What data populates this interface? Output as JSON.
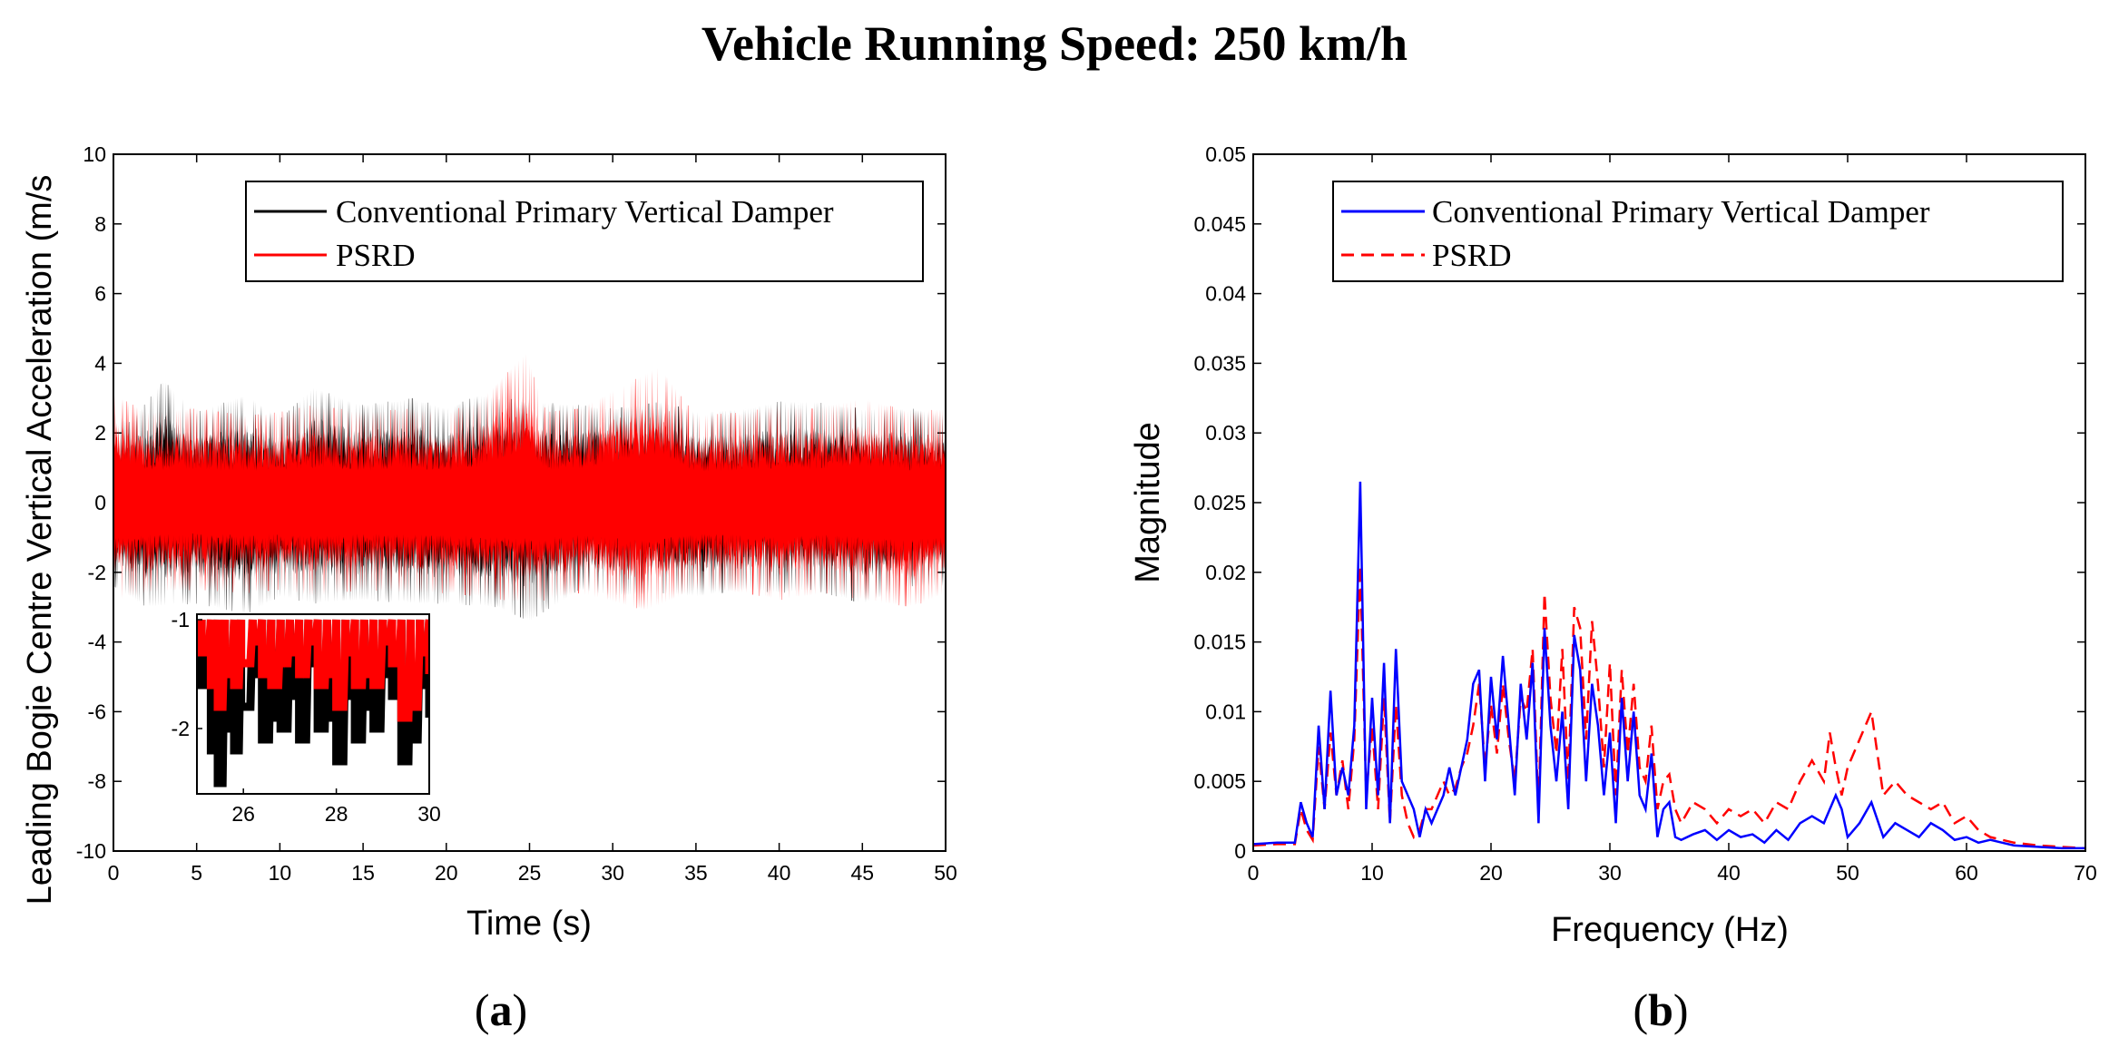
{
  "figure": {
    "title": "Vehicle Running Speed: 250 km/h"
  },
  "colors": {
    "conventional_a": "#000000",
    "psrd_a": "#ff0000",
    "conventional_b": "#0000ff",
    "psrd_b": "#ff0000"
  },
  "chart_data": [
    {
      "panel": "(a)",
      "type": "line",
      "title": "",
      "xlabel": "Time (s)",
      "ylabel": "Leading Bogie Centre Vertical Acceleration (m/s",
      "xlim": [
        0,
        50
      ],
      "ylim": [
        -10,
        10
      ],
      "xticks": [
        "0",
        "5",
        "10",
        "15",
        "20",
        "25",
        "30",
        "35",
        "40",
        "45",
        "50"
      ],
      "yticks": [
        "10",
        "8",
        "6",
        "4",
        "2",
        "0",
        "-2",
        "-4",
        "-6",
        "-8",
        "-10"
      ],
      "legend_position": "top-right",
      "series": [
        {
          "name": "Conventional Primary Vertical Damper",
          "style": "solid",
          "envelope_upper": [
            [
              0,
              2.6
            ],
            [
              1,
              2.3
            ],
            [
              3,
              3.5
            ],
            [
              5,
              2.6
            ],
            [
              8,
              3.1
            ],
            [
              10,
              2.4
            ],
            [
              12,
              3.3
            ],
            [
              15,
              2.8
            ],
            [
              18,
              3.0
            ],
            [
              20,
              2.7
            ],
            [
              22,
              3.1
            ],
            [
              25,
              2.9
            ],
            [
              28,
              2.8
            ],
            [
              30,
              2.7
            ],
            [
              33,
              2.9
            ],
            [
              35,
              2.6
            ],
            [
              38,
              2.7
            ],
            [
              40,
              2.9
            ],
            [
              42,
              2.9
            ],
            [
              45,
              2.7
            ],
            [
              48,
              2.7
            ],
            [
              50,
              2.5
            ]
          ],
          "envelope_lower": [
            [
              0,
              -2.4
            ],
            [
              2,
              -3.0
            ],
            [
              5,
              -2.9
            ],
            [
              8,
              -3.2
            ],
            [
              10,
              -2.7
            ],
            [
              12,
              -2.9
            ],
            [
              15,
              -2.8
            ],
            [
              18,
              -2.9
            ],
            [
              20,
              -2.9
            ],
            [
              23,
              -3.0
            ],
            [
              25,
              -3.4
            ],
            [
              28,
              -2.5
            ],
            [
              30,
              -2.7
            ],
            [
              33,
              -2.6
            ],
            [
              35,
              -2.7
            ],
            [
              38,
              -2.5
            ],
            [
              40,
              -2.6
            ],
            [
              42,
              -2.5
            ],
            [
              45,
              -2.9
            ],
            [
              48,
              -2.4
            ],
            [
              50,
              -2.4
            ]
          ]
        },
        {
          "name": "PSRD",
          "style": "solid",
          "envelope_upper": [
            [
              0,
              3.1
            ],
            [
              2,
              2.6
            ],
            [
              5,
              2.7
            ],
            [
              8,
              2.5
            ],
            [
              10,
              2.6
            ],
            [
              12,
              2.8
            ],
            [
              15,
              2.6
            ],
            [
              18,
              2.7
            ],
            [
              20,
              2.6
            ],
            [
              22,
              2.9
            ],
            [
              24.8,
              4.3
            ],
            [
              26,
              2.6
            ],
            [
              28,
              2.7
            ],
            [
              32.8,
              3.9
            ],
            [
              35,
              2.5
            ],
            [
              38,
              2.6
            ],
            [
              40,
              2.8
            ],
            [
              42,
              2.7
            ],
            [
              45,
              3.0
            ],
            [
              48,
              2.6
            ],
            [
              50,
              2.7
            ]
          ],
          "envelope_lower": [
            [
              0,
              -2.8
            ],
            [
              2,
              -2.6
            ],
            [
              5,
              -2.5
            ],
            [
              8,
              -2.6
            ],
            [
              10,
              -2.5
            ],
            [
              12,
              -2.7
            ],
            [
              15,
              -2.5
            ],
            [
              18,
              -2.6
            ],
            [
              20,
              -2.6
            ],
            [
              22,
              -2.7
            ],
            [
              25,
              -2.9
            ],
            [
              28,
              -2.6
            ],
            [
              32,
              -3.1
            ],
            [
              35,
              -2.5
            ],
            [
              38,
              -2.6
            ],
            [
              40,
              -2.8
            ],
            [
              43,
              -2.6
            ],
            [
              45,
              -2.8
            ],
            [
              48,
              -3.0
            ],
            [
              50,
              -2.6
            ]
          ]
        }
      ],
      "inset": {
        "xlim": [
          25,
          30
        ],
        "ylim": [
          -2.6,
          -0.95
        ],
        "xticks": [
          "26",
          "28",
          "30"
        ],
        "yticks": [
          "-1",
          "-2"
        ],
        "series": [
          {
            "name": "Conventional Primary Vertical Damper",
            "x": [
              25.1,
              25.3,
              25.45,
              25.6,
              25.8,
              25.95,
              26.2,
              26.4,
              26.6,
              26.8,
              27.0,
              27.2,
              27.4,
              27.6,
              27.8,
              28.0,
              28.2,
              28.4,
              28.6,
              28.8,
              29.0,
              29.2,
              29.4,
              29.6,
              29.8,
              30.0
            ],
            "y": [
              -1.6,
              -2.2,
              -2.5,
              -2.0,
              -2.2,
              -1.8,
              -1.5,
              -2.1,
              -1.9,
              -2.0,
              -1.7,
              -2.1,
              -1.4,
              -2.0,
              -1.9,
              -2.3,
              -1.7,
              -2.1,
              -1.8,
              -2.0,
              -1.5,
              -1.7,
              -2.3,
              -2.1,
              -1.6,
              -1.9
            ]
          },
          {
            "name": "PSRD",
            "x": [
              25.1,
              25.3,
              25.45,
              25.6,
              25.8,
              25.95,
              26.2,
              26.4,
              26.6,
              26.8,
              27.0,
              27.2,
              27.4,
              27.6,
              27.8,
              28.0,
              28.2,
              28.4,
              28.6,
              28.8,
              29.0,
              29.2,
              29.4,
              29.6,
              29.8,
              30.0
            ],
            "y": [
              -1.3,
              -1.6,
              -1.8,
              -1.5,
              -1.6,
              -1.4,
              -1.2,
              -1.5,
              -1.6,
              -1.4,
              -1.3,
              -1.5,
              -1.2,
              -1.6,
              -1.5,
              -1.8,
              -1.3,
              -1.6,
              -1.5,
              -1.6,
              -1.2,
              -1.4,
              -1.9,
              -1.8,
              -1.3,
              -1.5
            ]
          }
        ]
      }
    },
    {
      "panel": "(b)",
      "type": "line",
      "title": "",
      "xlabel": "Frequency (Hz)",
      "ylabel": "Magnitude",
      "xlim": [
        0,
        70
      ],
      "ylim": [
        0,
        0.05
      ],
      "xticks": [
        "0",
        "10",
        "20",
        "30",
        "40",
        "50",
        "60",
        "70"
      ],
      "yticks": [
        "0.05",
        "0.045",
        "0.04",
        "0.035",
        "0.03",
        "0.025",
        "0.02",
        "0.015",
        "0.01",
        "0.005",
        "0"
      ],
      "legend_position": "top-right",
      "series": [
        {
          "name": "Conventional Primary Vertical Damper",
          "style": "solid",
          "x": [
            0,
            2,
            3.5,
            4,
            4.5,
            5,
            5.5,
            6,
            6.5,
            7,
            7.5,
            8,
            8.5,
            9,
            9.5,
            10,
            10.5,
            11,
            11.5,
            12,
            12.5,
            13,
            13.5,
            14,
            14.5,
            15,
            15.5,
            16,
            16.5,
            17,
            17.5,
            18,
            18.5,
            19,
            19.5,
            20,
            20.5,
            21,
            21.5,
            22,
            22.5,
            23,
            23.5,
            24,
            24.5,
            25,
            25.5,
            26,
            26.5,
            27,
            27.5,
            28,
            28.5,
            29,
            29.5,
            30,
            30.5,
            31,
            31.5,
            32,
            32.5,
            33,
            33.5,
            34,
            34.5,
            35,
            35.5,
            36,
            37,
            38,
            39,
            40,
            41,
            42,
            43,
            44,
            45,
            46,
            47,
            48,
            48.5,
            49,
            49.5,
            50,
            51,
            52,
            53,
            54,
            55,
            56,
            57,
            58,
            59,
            60,
            61,
            62,
            63,
            64,
            66,
            68,
            70
          ],
          "y": [
            0.0005,
            0.0006,
            0.0006,
            0.0035,
            0.002,
            0.001,
            0.009,
            0.003,
            0.0115,
            0.004,
            0.006,
            0.004,
            0.009,
            0.0265,
            0.003,
            0.011,
            0.004,
            0.0135,
            0.002,
            0.0145,
            0.005,
            0.004,
            0.003,
            0.001,
            0.003,
            0.002,
            0.003,
            0.004,
            0.006,
            0.004,
            0.006,
            0.008,
            0.012,
            0.013,
            0.005,
            0.0125,
            0.008,
            0.014,
            0.009,
            0.004,
            0.012,
            0.008,
            0.0135,
            0.002,
            0.016,
            0.009,
            0.005,
            0.01,
            0.003,
            0.0155,
            0.013,
            0.005,
            0.012,
            0.009,
            0.004,
            0.0085,
            0.002,
            0.011,
            0.005,
            0.01,
            0.004,
            0.003,
            0.007,
            0.001,
            0.003,
            0.0035,
            0.001,
            0.0008,
            0.0012,
            0.0015,
            0.0008,
            0.0015,
            0.001,
            0.0012,
            0.0006,
            0.0015,
            0.0008,
            0.002,
            0.0025,
            0.002,
            0.003,
            0.004,
            0.003,
            0.001,
            0.002,
            0.0035,
            0.001,
            0.002,
            0.0015,
            0.001,
            0.002,
            0.0015,
            0.0008,
            0.001,
            0.0006,
            0.0008,
            0.0006,
            0.0004,
            0.0003,
            0.0002,
            0.0002
          ]
        },
        {
          "name": "PSRD",
          "style": "dashed",
          "x": [
            0,
            2,
            3.5,
            4,
            4.5,
            5,
            5.5,
            6,
            6.5,
            7,
            7.5,
            8,
            8.5,
            9,
            9.5,
            10,
            10.5,
            11,
            11.5,
            12,
            12.5,
            13,
            13.5,
            14,
            14.5,
            15,
            15.5,
            16,
            16.5,
            17,
            17.5,
            18,
            18.5,
            19,
            19.5,
            20,
            20.5,
            21,
            21.5,
            22,
            22.5,
            23,
            23.5,
            24,
            24.5,
            25,
            25.5,
            26,
            26.5,
            27,
            27.5,
            28,
            28.5,
            29,
            29.5,
            30,
            30.5,
            31,
            31.5,
            32,
            32.5,
            33,
            33.5,
            34,
            34.5,
            35,
            35.5,
            36,
            37,
            38,
            39,
            40,
            41,
            42,
            43,
            44,
            45,
            46,
            47,
            48,
            48.5,
            49,
            49.5,
            50,
            51,
            52,
            53,
            54,
            55,
            56,
            57,
            58,
            59,
            60,
            61,
            62,
            63,
            64,
            66,
            68,
            70
          ],
          "y": [
            0.0004,
            0.0005,
            0.0005,
            0.003,
            0.0015,
            0.0008,
            0.0075,
            0.003,
            0.0085,
            0.004,
            0.0065,
            0.003,
            0.008,
            0.0205,
            0.004,
            0.009,
            0.003,
            0.011,
            0.002,
            0.0105,
            0.004,
            0.002,
            0.001,
            0.0015,
            0.003,
            0.003,
            0.004,
            0.005,
            0.004,
            0.0045,
            0.006,
            0.007,
            0.009,
            0.012,
            0.006,
            0.0105,
            0.007,
            0.012,
            0.008,
            0.005,
            0.011,
            0.01,
            0.0145,
            0.003,
            0.0185,
            0.011,
            0.007,
            0.0145,
            0.005,
            0.0175,
            0.016,
            0.008,
            0.0165,
            0.012,
            0.006,
            0.0135,
            0.004,
            0.013,
            0.007,
            0.012,
            0.006,
            0.005,
            0.009,
            0.003,
            0.005,
            0.0055,
            0.003,
            0.002,
            0.0035,
            0.003,
            0.002,
            0.003,
            0.0025,
            0.003,
            0.002,
            0.0035,
            0.003,
            0.005,
            0.0065,
            0.005,
            0.0085,
            0.006,
            0.004,
            0.006,
            0.008,
            0.01,
            0.004,
            0.005,
            0.004,
            0.0035,
            0.003,
            0.0035,
            0.002,
            0.0025,
            0.0015,
            0.001,
            0.0008,
            0.0006,
            0.0004,
            0.0003,
            0.0002
          ]
        }
      ]
    }
  ]
}
